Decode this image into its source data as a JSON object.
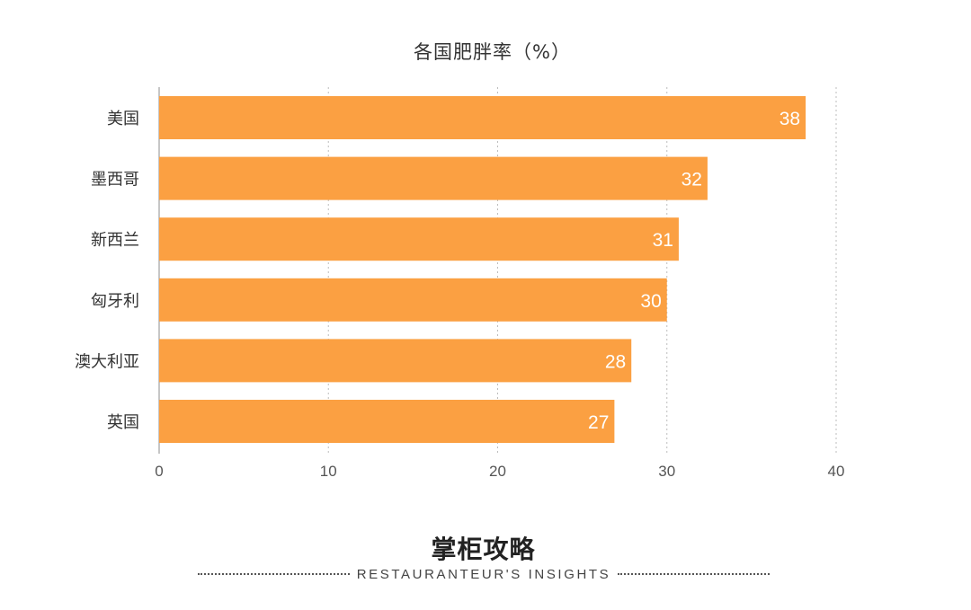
{
  "chart_data": {
    "type": "bar",
    "orientation": "horizontal",
    "title": "各国肥胖率（%）",
    "categories": [
      "美国",
      "墨西哥",
      "新西兰",
      "匈牙利",
      "澳大利亚",
      "英国"
    ],
    "values": [
      38.2,
      32.4,
      30.7,
      30.0,
      27.9,
      26.9
    ],
    "data_labels": [
      "38",
      "32",
      "31",
      "30",
      "28",
      "27"
    ],
    "xlim": [
      0,
      40
    ],
    "x_ticks": [
      0,
      10,
      20,
      30,
      40
    ],
    "x_tick_labels": [
      "0",
      "10",
      "20",
      "30",
      "40"
    ],
    "grid": true,
    "bar_color": "#FBA042",
    "label_color": "#ffffff",
    "legend": "none"
  },
  "brand": {
    "name": "掌柜攻略",
    "tagline": "RESTAURANTEUR'S INSIGHTS"
  }
}
